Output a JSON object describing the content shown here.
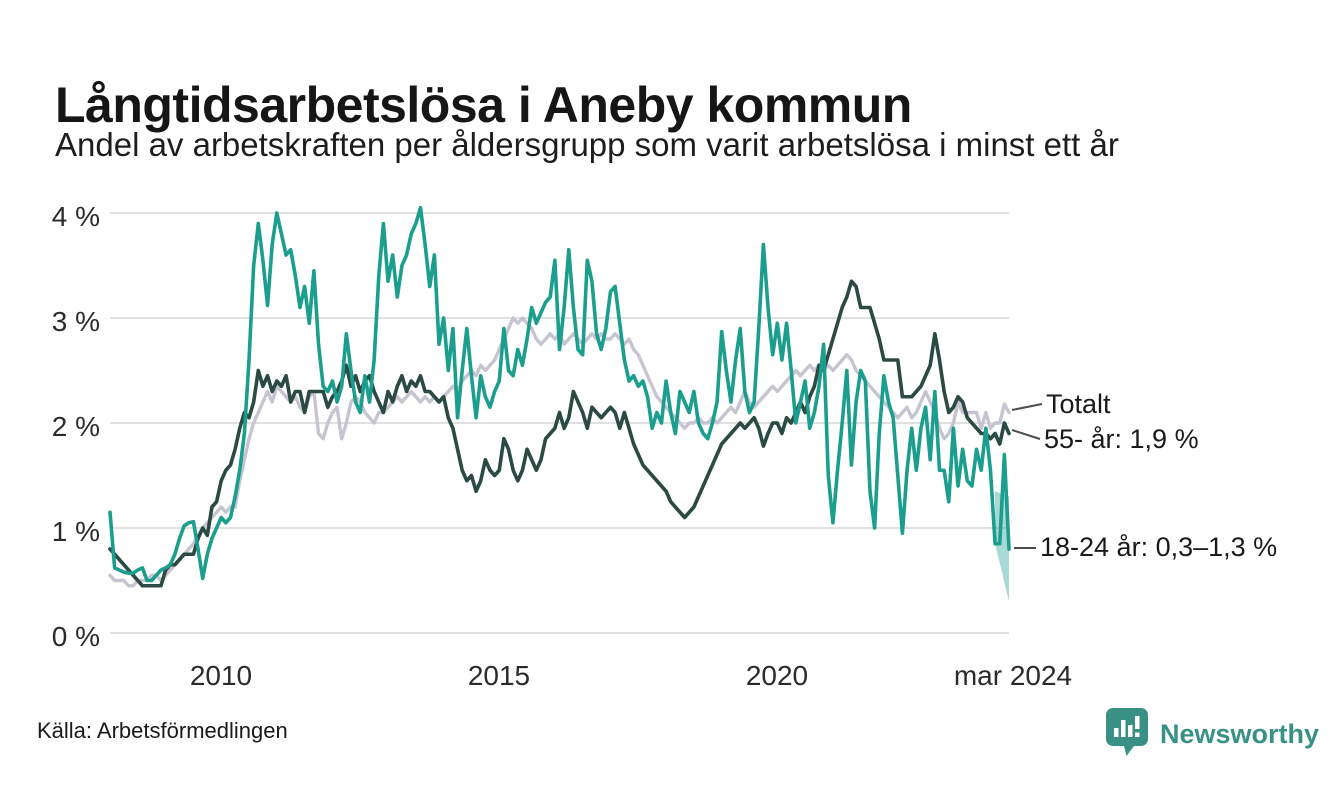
{
  "header": {
    "title": "Långtidsarbetslösa i Aneby kommun",
    "subtitle": "Andel av arbetskraften per åldersgrupp som varit arbetslösa i minst ett år"
  },
  "footer": {
    "source": "Källa: Arbetsförmedlingen",
    "brand": "Newsworthy"
  },
  "colors": {
    "totalt": "#c6c4d0",
    "age_55": "#2b4a43",
    "age_18_24": "#1b9e8e",
    "band": "#1e9c8d",
    "grid": "#e0e0e0",
    "connector": "#4d4d4d",
    "brand_teal": "#399185"
  },
  "chart_data": {
    "type": "line",
    "title": "Långtidsarbetslösa i Aneby kommun",
    "subtitle": "Andel av arbetskraften per åldersgrupp som varit arbetslösa i minst ett år",
    "x_unit": "month",
    "x_start": "2008-01",
    "x_end": "2024-03",
    "ylim": [
      0,
      4
    ],
    "grid": "horizontal",
    "y_ticks": [
      "4 %",
      "3 %",
      "2 %",
      "1 %",
      "0 %"
    ],
    "x_tick_labels": [
      "2010",
      "2015",
      "2020",
      "mar 2024"
    ],
    "x_tick_month_index": [
      24,
      84,
      144,
      194
    ],
    "series": [
      {
        "name": "Totalt",
        "color": "#c6c4d0",
        "values": [
          0.55,
          0.5,
          0.5,
          0.5,
          0.45,
          0.45,
          0.5,
          0.5,
          0.5,
          0.55,
          0.55,
          0.5,
          0.55,
          0.6,
          0.65,
          0.7,
          0.75,
          0.8,
          0.85,
          0.93,
          1.0,
          1.05,
          1.1,
          1.15,
          1.2,
          1.15,
          1.2,
          1.2,
          1.45,
          1.65,
          1.85,
          2.0,
          2.1,
          2.2,
          2.3,
          2.2,
          2.35,
          2.3,
          2.25,
          2.2,
          2.25,
          2.15,
          2.1,
          2.25,
          2.3,
          1.9,
          1.85,
          2.0,
          2.1,
          2.15,
          1.85,
          2.0,
          2.2,
          2.25,
          2.2,
          2.1,
          2.05,
          2.0,
          2.1,
          2.1,
          2.15,
          2.2,
          2.25,
          2.2,
          2.25,
          2.3,
          2.25,
          2.2,
          2.25,
          2.2,
          2.25,
          2.2,
          2.25,
          2.3,
          2.35,
          2.3,
          2.4,
          2.45,
          2.5,
          2.45,
          2.55,
          2.5,
          2.55,
          2.6,
          2.7,
          2.8,
          2.9,
          3.0,
          2.95,
          3.0,
          2.95,
          2.9,
          2.8,
          2.75,
          2.8,
          2.85,
          2.8,
          2.85,
          2.75,
          2.8,
          2.85,
          2.8,
          2.75,
          2.8,
          2.85,
          2.8,
          2.85,
          2.8,
          2.8,
          2.85,
          2.8,
          2.75,
          2.8,
          2.7,
          2.65,
          2.55,
          2.45,
          2.35,
          2.25,
          2.2,
          2.15,
          2.1,
          2.05,
          2.0,
          1.95,
          2.0,
          2.0,
          2.05,
          2.0,
          2.0,
          2.05,
          2.0,
          2.05,
          2.1,
          2.15,
          2.1,
          2.2,
          2.3,
          2.2,
          2.15,
          2.2,
          2.25,
          2.3,
          2.35,
          2.3,
          2.35,
          2.4,
          2.45,
          2.5,
          2.45,
          2.5,
          2.55,
          2.5,
          2.55,
          2.5,
          2.55,
          2.5,
          2.55,
          2.6,
          2.65,
          2.6,
          2.5,
          2.45,
          2.4,
          2.35,
          2.3,
          2.25,
          2.2,
          2.15,
          2.1,
          2.05,
          2.1,
          2.15,
          2.05,
          2.1,
          2.2,
          2.3,
          2.2,
          2.1,
          1.95,
          1.85,
          1.9,
          2.0,
          2.2,
          2.1,
          2.1,
          2.1,
          2.1,
          1.95,
          2.1,
          1.95,
          2.0,
          2.0,
          2.18,
          2.1
        ]
      },
      {
        "name": "55- år",
        "color": "#2b4a43",
        "values": [
          0.8,
          0.75,
          0.7,
          0.65,
          0.6,
          0.55,
          0.5,
          0.45,
          0.45,
          0.45,
          0.45,
          0.45,
          0.6,
          0.65,
          0.65,
          0.7,
          0.75,
          0.75,
          0.75,
          0.9,
          1.0,
          0.93,
          1.2,
          1.25,
          1.45,
          1.55,
          1.6,
          1.75,
          1.95,
          2.1,
          2.05,
          2.2,
          2.5,
          2.35,
          2.45,
          2.3,
          2.4,
          2.35,
          2.45,
          2.2,
          2.3,
          2.3,
          2.1,
          2.3,
          2.3,
          2.3,
          2.3,
          2.15,
          2.25,
          2.3,
          2.4,
          2.55,
          2.35,
          2.45,
          2.3,
          2.4,
          2.45,
          2.3,
          2.2,
          2.1,
          2.3,
          2.2,
          2.35,
          2.45,
          2.3,
          2.4,
          2.35,
          2.45,
          2.3,
          2.3,
          2.25,
          2.2,
          2.25,
          2.05,
          1.95,
          1.75,
          1.55,
          1.45,
          1.5,
          1.35,
          1.45,
          1.65,
          1.55,
          1.5,
          1.55,
          1.85,
          1.75,
          1.55,
          1.45,
          1.55,
          1.75,
          1.65,
          1.55,
          1.65,
          1.85,
          1.9,
          1.95,
          2.1,
          1.95,
          2.05,
          2.3,
          2.2,
          2.1,
          1.95,
          2.15,
          2.1,
          2.05,
          2.1,
          2.15,
          2.1,
          1.95,
          2.1,
          1.95,
          1.8,
          1.7,
          1.6,
          1.55,
          1.5,
          1.45,
          1.4,
          1.35,
          1.25,
          1.2,
          1.15,
          1.1,
          1.15,
          1.2,
          1.3,
          1.4,
          1.5,
          1.6,
          1.7,
          1.8,
          1.85,
          1.9,
          1.95,
          2.0,
          1.95,
          2.0,
          2.05,
          1.95,
          1.78,
          1.9,
          2.0,
          2.0,
          1.9,
          2.05,
          2.0,
          2.1,
          2.2,
          2.1,
          2.25,
          2.35,
          2.55,
          2.5,
          2.65,
          2.8,
          2.95,
          3.1,
          3.2,
          3.35,
          3.3,
          3.1,
          3.1,
          3.1,
          2.95,
          2.8,
          2.6,
          2.6,
          2.6,
          2.6,
          2.25,
          2.25,
          2.25,
          2.3,
          2.35,
          2.45,
          2.55,
          2.85,
          2.6,
          2.3,
          2.1,
          2.15,
          2.25,
          2.2,
          2.05,
          2.0,
          1.95,
          1.9,
          1.9,
          1.85,
          1.9,
          1.8,
          2.0,
          1.9
        ]
      },
      {
        "name": "18-24 år",
        "color": "#1b9e8e",
        "values": [
          1.15,
          0.62,
          0.6,
          0.58,
          0.57,
          0.57,
          0.6,
          0.62,
          0.5,
          0.5,
          0.55,
          0.6,
          0.62,
          0.65,
          0.75,
          0.9,
          1.02,
          1.05,
          1.06,
          0.8,
          0.52,
          0.75,
          0.9,
          1.0,
          1.1,
          1.05,
          1.1,
          1.3,
          1.55,
          1.9,
          2.6,
          3.5,
          3.9,
          3.55,
          3.12,
          3.7,
          4.0,
          3.8,
          3.6,
          3.65,
          3.4,
          3.1,
          3.3,
          2.95,
          3.45,
          2.75,
          2.35,
          2.3,
          2.4,
          2.2,
          2.35,
          2.85,
          2.5,
          2.2,
          2.1,
          2.45,
          2.2,
          2.6,
          3.4,
          3.9,
          3.35,
          3.6,
          3.2,
          3.5,
          3.6,
          3.8,
          3.9,
          4.05,
          3.7,
          3.3,
          3.6,
          2.75,
          3.0,
          2.5,
          2.9,
          2.05,
          2.5,
          2.9,
          2.45,
          2.05,
          2.45,
          2.25,
          2.15,
          2.3,
          2.4,
          2.9,
          2.5,
          2.45,
          2.7,
          2.55,
          2.8,
          3.1,
          2.95,
          3.05,
          3.15,
          3.2,
          3.55,
          2.7,
          3.1,
          3.65,
          3.1,
          2.7,
          2.65,
          3.55,
          3.35,
          2.85,
          2.7,
          2.9,
          3.25,
          3.3,
          2.95,
          2.6,
          2.4,
          2.45,
          2.35,
          2.4,
          2.25,
          1.95,
          2.1,
          2.0,
          2.4,
          2.1,
          1.9,
          2.3,
          2.2,
          2.1,
          2.3,
          2.0,
          1.9,
          1.85,
          2.0,
          2.2,
          2.87,
          2.5,
          2.2,
          2.6,
          2.9,
          2.3,
          2.1,
          2.2,
          2.9,
          3.7,
          3.1,
          2.65,
          2.95,
          2.6,
          2.95,
          2.5,
          2.0,
          2.2,
          2.4,
          1.95,
          2.1,
          2.35,
          2.75,
          1.5,
          1.05,
          1.55,
          2.0,
          2.5,
          1.6,
          2.2,
          2.5,
          2.4,
          1.35,
          1.0,
          1.9,
          2.45,
          2.2,
          2.05,
          1.5,
          0.95,
          1.55,
          1.95,
          1.55,
          1.95,
          2.15,
          1.65,
          2.3,
          1.55,
          1.55,
          1.25,
          1.95,
          1.4,
          1.75,
          1.45,
          1.4,
          1.75,
          1.55,
          1.95,
          1.55,
          0.85,
          0.85,
          1.7,
          0.8
        ]
      }
    ],
    "uncertainty_band": {
      "series": "18-24 år",
      "start_month_index": 191,
      "end_month_index": 194,
      "upper": [
        1.35,
        1.3
      ],
      "lower": [
        0.85,
        0.3
      ]
    },
    "annotations": [
      {
        "text": "Totalt",
        "series": "Totalt"
      },
      {
        "text": "55- år: 1,9 %",
        "series": "55- år",
        "end_value": "1,9 %"
      },
      {
        "text": "18-24 år: 0,3–1,3 %",
        "series": "18-24 år",
        "end_range": "0,3–1,3 %"
      }
    ],
    "legend_position": "right-of-line-ends"
  }
}
